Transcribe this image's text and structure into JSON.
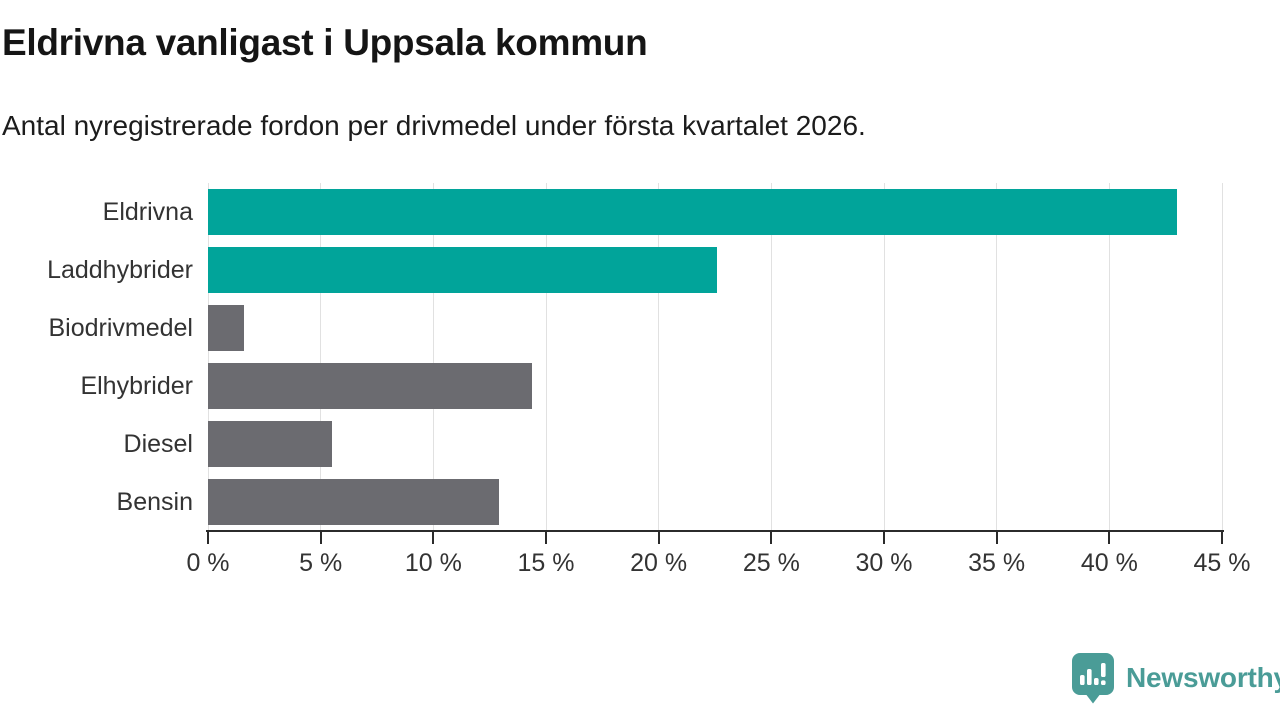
{
  "header": {
    "title": "Eldrivna vanligast i Uppsala kommun",
    "subtitle": "Antal nyregistrerade fordon per drivmedel under första kvartalet 2026."
  },
  "chart_data": {
    "type": "bar",
    "orientation": "horizontal",
    "title": "Eldrivna vanligast i Uppsala kommun",
    "subtitle": "Antal nyregistrerade fordon per drivmedel under första kvartalet 2026.",
    "categories": [
      "Eldrivna",
      "Laddhybrider",
      "Biodrivmedel",
      "Elhybrider",
      "Diesel",
      "Bensin"
    ],
    "values": [
      43.0,
      22.6,
      1.6,
      14.4,
      5.5,
      12.9
    ],
    "value_unit": "%",
    "bar_colors": [
      "#01a49a",
      "#01a49a",
      "#6b6b70",
      "#6b6b70",
      "#6b6b70",
      "#6b6b70"
    ],
    "xlim": [
      0,
      45
    ],
    "x_ticks": [
      0,
      5,
      10,
      15,
      20,
      25,
      30,
      35,
      40,
      45
    ],
    "x_tick_labels": [
      "0 %",
      "5 %",
      "10 %",
      "15 %",
      "20 %",
      "25 %",
      "30 %",
      "35 %",
      "40 %",
      "45 %"
    ],
    "xlabel": "",
    "ylabel": "",
    "grid": true,
    "legend": "none"
  },
  "colors": {
    "teal": "#01a49a",
    "gray": "#6b6b70",
    "axis": "#2b2b2b",
    "gridline": "#e1e1e1",
    "tick_text": "#333333",
    "title_text": "#151515",
    "logo_teal": "#4a9c97"
  },
  "footer": {
    "brand": "Newsworthy",
    "logo_icon": "newsworthy-speech-bubble-bar-chart-icon"
  }
}
